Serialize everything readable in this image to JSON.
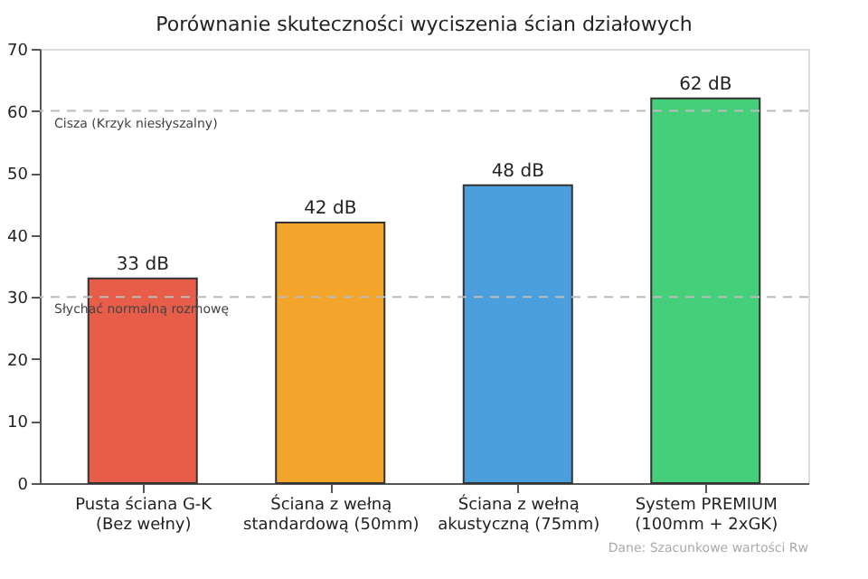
{
  "chart_data": {
    "type": "bar",
    "title": "Porównanie skuteczności wyciszenia ścian działowych",
    "categories": [
      "Pusta ściana G-K\n(Bez wełny)",
      "Ściana z wełną\nstandardową (50mm)",
      "Ściana z wełną\nakustyczną (75mm)",
      "System PREMIUM\n(100mm + 2xGK)"
    ],
    "values": [
      33,
      42,
      48,
      62
    ],
    "colors": [
      "#e85c4a",
      "#f2a52a",
      "#4a9fdc",
      "#45cf7a"
    ],
    "value_labels": [
      "33 dB",
      "42 dB",
      "48 dB",
      "62 dB"
    ],
    "ylim": [
      0,
      70
    ],
    "yticks": [
      0,
      10,
      20,
      30,
      40,
      50,
      60,
      70
    ],
    "grid": false,
    "ref_lines": [
      {
        "axis": "y",
        "value": 60,
        "label": "Cisza (Krzyk niesłyszalny)",
        "color": "#bbbbbb",
        "line_style": "dashed"
      },
      {
        "axis": "y",
        "value": 30,
        "label": "Słychać normalną rozmowę",
        "color": "#bbbbbb",
        "line_style": "dashed"
      }
    ],
    "annotations": [
      "Dane: Szacunkowe wartości Rw"
    ]
  }
}
